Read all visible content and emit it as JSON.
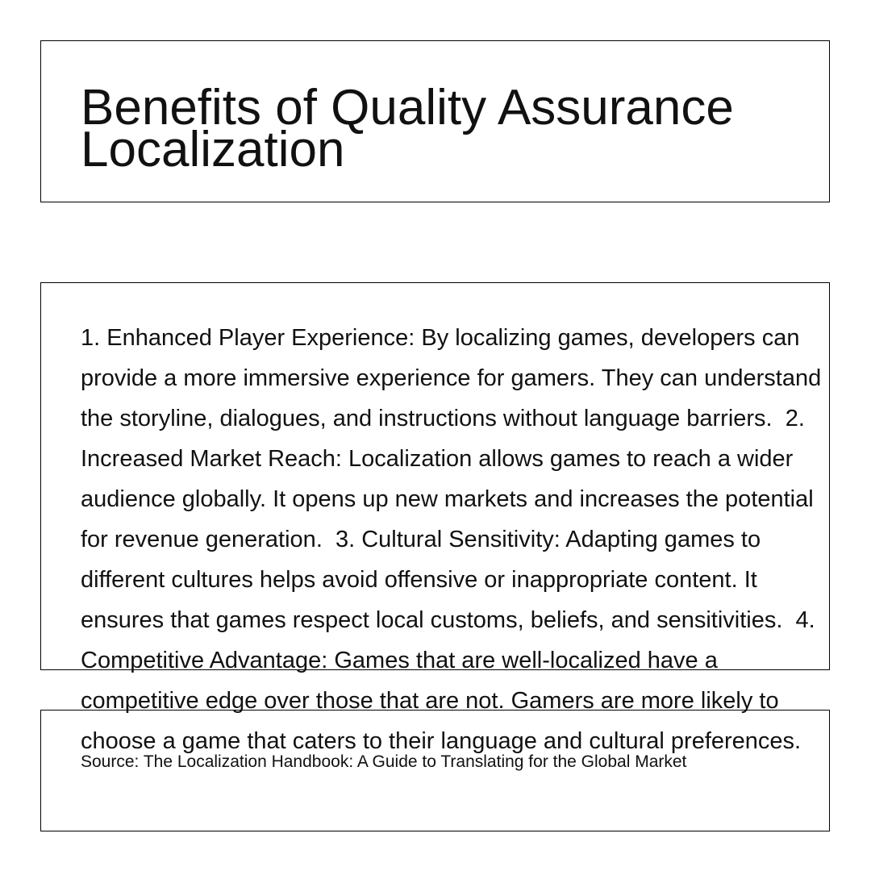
{
  "slide": {
    "title": "Benefits of Quality Assurance Localization",
    "body": "1. Enhanced Player Experience: By localizing games, developers can provide a more immersive experience for gamers. They can understand the storyline, dialogues, and instructions without language barriers.  2. Increased Market Reach: Localization allows games to reach a wider audience globally. It opens up new markets and increases the potential for revenue generation.  3. Cultural Sensitivity: Adapting games to different cultures helps avoid offensive or inappropriate content. It ensures that games respect local customs, beliefs, and sensitivities.  4. Competitive Advantage: Games that are well-localized have a competitive edge over those that are not. Gamers are more likely to choose a game that caters to their language and cultural preferences.",
    "source": "Source: The Localization Handbook: A Guide to Translating for the Global Market"
  }
}
